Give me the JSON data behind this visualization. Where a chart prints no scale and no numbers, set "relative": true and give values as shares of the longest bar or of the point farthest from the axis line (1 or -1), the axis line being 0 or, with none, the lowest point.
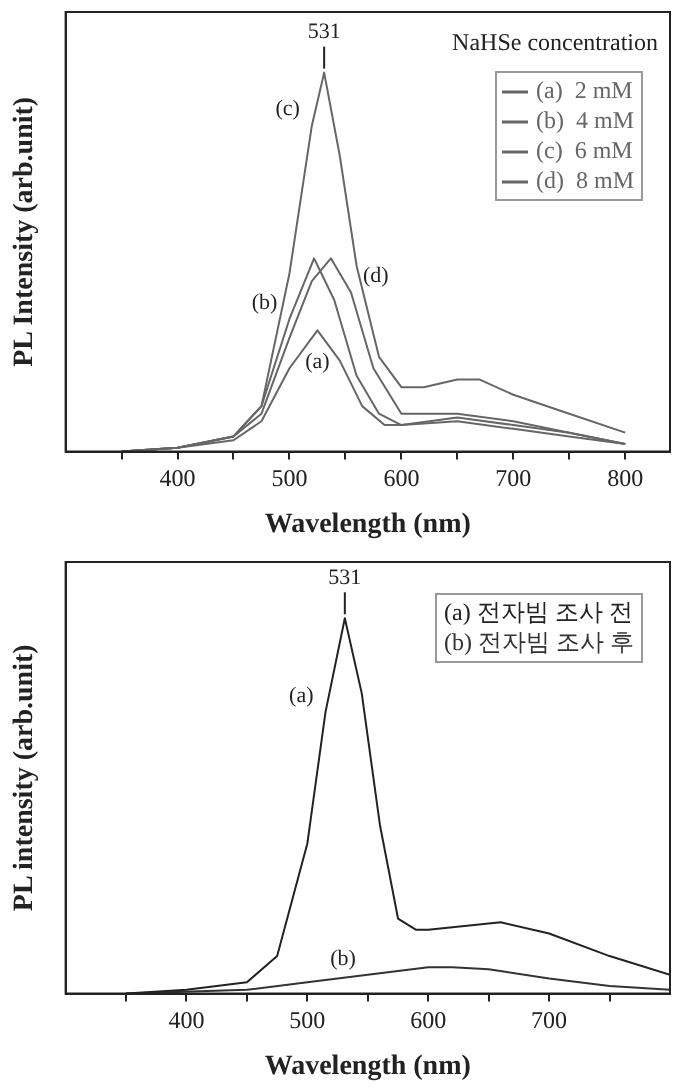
{
  "chart_data": [
    {
      "type": "line",
      "relative": true,
      "xlabel": "Wavelength (nm)",
      "ylabel": "PL Intensity (arb.unit)",
      "legend_title": "NaHSe concentration",
      "legend": "top right",
      "grid": false,
      "marker": "none",
      "line_style": "solid",
      "xlim": [
        300,
        840
      ],
      "xticks": [
        {
          "value": 350,
          "label": null
        },
        400,
        {
          "value": 450,
          "label": null
        },
        500,
        {
          "value": 550,
          "label": null
        },
        600,
        {
          "value": 650,
          "label": null
        },
        700,
        {
          "value": 750,
          "label": null
        },
        800
      ],
      "series": [
        {
          "name": "(a)  2 mM",
          "color": "#666666",
          "x": [
            350,
            400,
            450,
            475,
            500,
            525,
            545,
            565,
            585,
            600,
            650,
            700,
            750,
            800
          ],
          "values": [
            0,
            0.01,
            0.03,
            0.08,
            0.22,
            0.32,
            0.24,
            0.12,
            0.07,
            0.07,
            0.08,
            0.06,
            0.04,
            0.02
          ]
        },
        {
          "name": "(b)  4 mM",
          "color": "#666666",
          "x": [
            350,
            400,
            450,
            475,
            500,
            522,
            540,
            560,
            580,
            600,
            650,
            700,
            750,
            800
          ],
          "values": [
            0,
            0.01,
            0.04,
            0.12,
            0.35,
            0.51,
            0.4,
            0.2,
            0.1,
            0.07,
            0.09,
            0.07,
            0.05,
            0.02
          ]
        },
        {
          "name": "(c)  6 mM",
          "color": "#666666",
          "x": [
            350,
            400,
            450,
            475,
            500,
            520,
            531,
            545,
            560,
            580,
            600,
            620,
            650,
            670,
            700,
            750,
            800
          ],
          "values": [
            0,
            0.01,
            0.04,
            0.12,
            0.47,
            0.86,
            1,
            0.78,
            0.49,
            0.25,
            0.17,
            0.17,
            0.19,
            0.19,
            0.15,
            0.1,
            0.05
          ]
        },
        {
          "name": "(d)  8 mM",
          "color": "#666666",
          "x": [
            350,
            400,
            450,
            475,
            500,
            520,
            537,
            555,
            575,
            600,
            650,
            700,
            750,
            800
          ],
          "values": [
            0,
            0.01,
            0.04,
            0.1,
            0.3,
            0.45,
            0.51,
            0.42,
            0.22,
            0.1,
            0.1,
            0.08,
            0.05,
            0.02
          ]
        }
      ],
      "annotations": [
        {
          "text": "531",
          "x": 531,
          "y": 1
        },
        {
          "text": "(c)",
          "x": 520,
          "y": 0.86
        },
        {
          "text": "(b)",
          "x": 500,
          "y": 0.35
        },
        {
          "text": "(d)",
          "x": 555,
          "y": 0.42
        },
        {
          "text": "(a)",
          "x": 525,
          "y": 0.32
        }
      ]
    },
    {
      "type": "line",
      "relative": true,
      "xlabel": "Wavelength (nm)",
      "ylabel": "PL intensity (arb.unit)",
      "legend": "top right",
      "grid": false,
      "marker": "none",
      "line_style": "solid",
      "xlim": [
        300,
        800
      ],
      "xticks": [
        {
          "value": 350,
          "label": null
        },
        400,
        {
          "value": 450,
          "label": null
        },
        500,
        {
          "value": 550,
          "label": null
        },
        600,
        {
          "value": 650,
          "label": null
        },
        700,
        {
          "value": 750,
          "label": null
        }
      ],
      "series": [
        {
          "name": "(a) 전자빔 조사 전",
          "color": "#222222",
          "x": [
            350,
            400,
            450,
            475,
            500,
            515,
            531,
            545,
            560,
            575,
            590,
            600,
            630,
            660,
            700,
            750,
            800
          ],
          "values": [
            0,
            0.01,
            0.03,
            0.1,
            0.4,
            0.75,
            1,
            0.8,
            0.45,
            0.2,
            0.17,
            0.17,
            0.18,
            0.19,
            0.16,
            0.1,
            0.05
          ]
        },
        {
          "name": "(b) 전자빔 조사 후",
          "color": "#333333",
          "x": [
            350,
            450,
            500,
            550,
            600,
            620,
            650,
            700,
            750,
            800
          ],
          "values": [
            0,
            0.01,
            0.03,
            0.05,
            0.07,
            0.07,
            0.065,
            0.04,
            0.02,
            0.01
          ]
        }
      ],
      "annotations": [
        {
          "text": "531",
          "x": 531,
          "y": 1
        },
        {
          "text": "(a)",
          "x": 515,
          "y": 0.75
        },
        {
          "text": "(b)",
          "x": 550,
          "y": 0.05
        }
      ]
    }
  ]
}
